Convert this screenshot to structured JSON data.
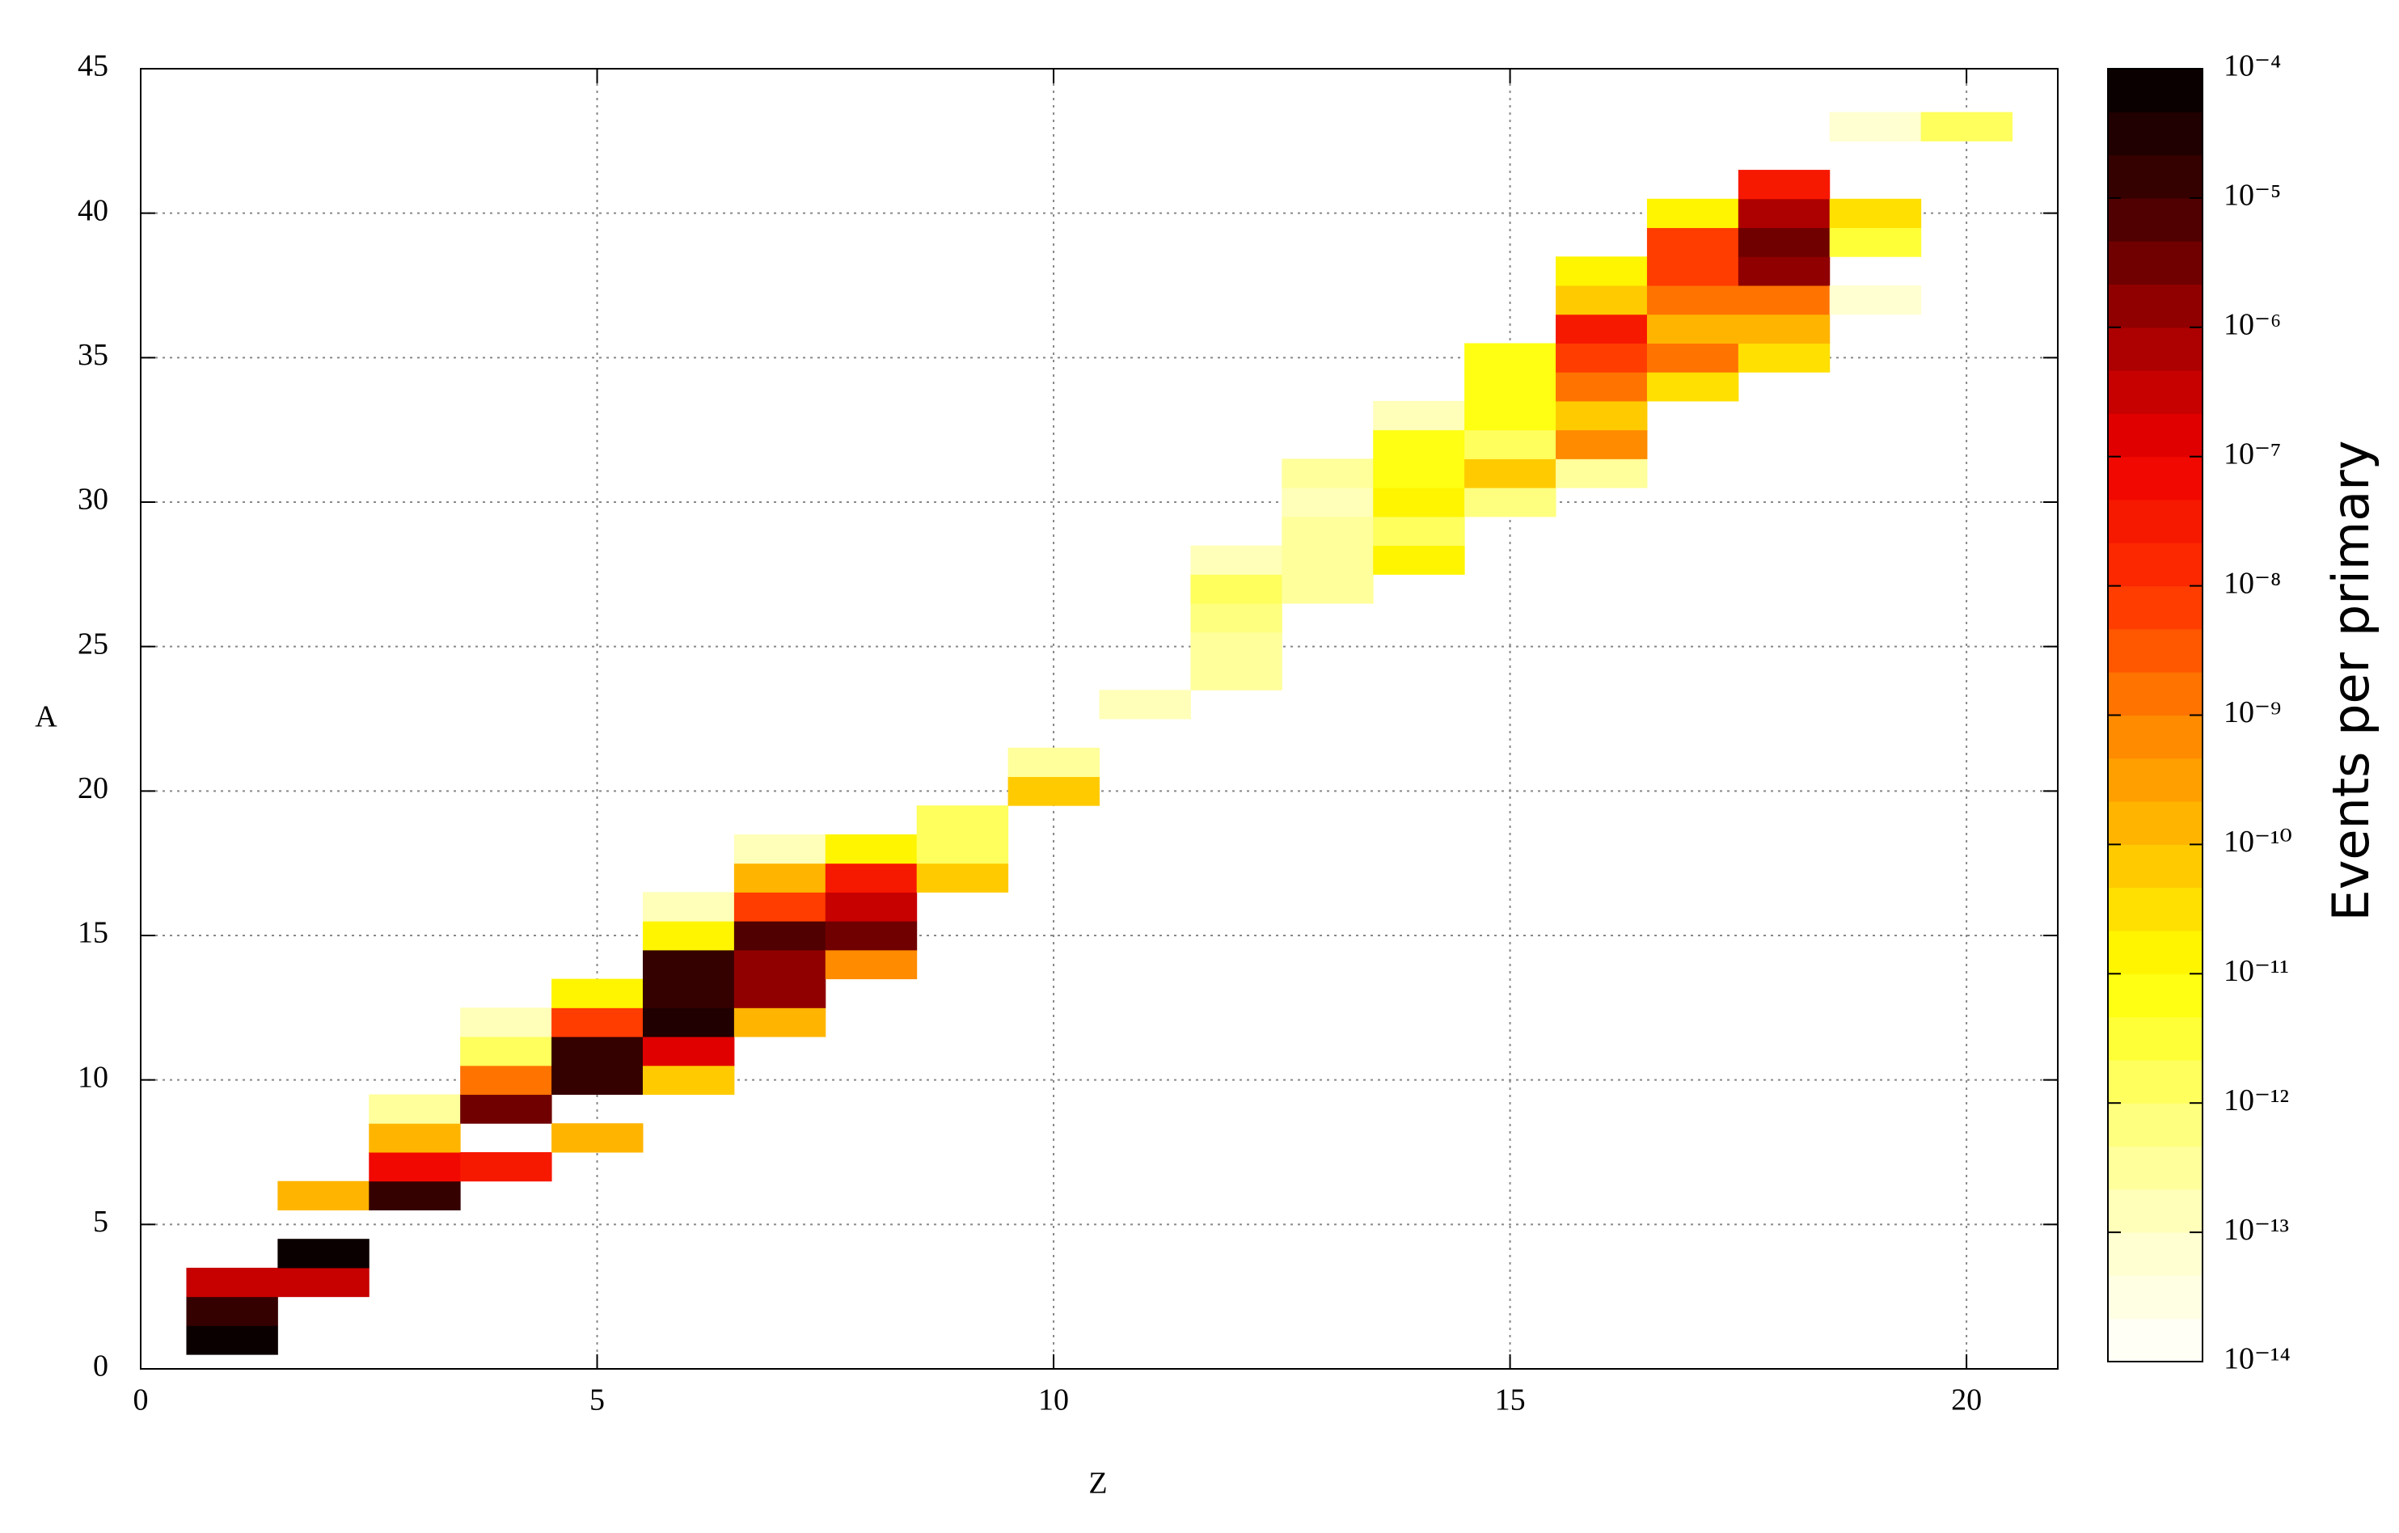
{
  "chart_data": {
    "type": "heatmap",
    "x_label": "Z",
    "y_label": "A",
    "colorbar_label": "Events per primary",
    "xlim": [
      0,
      21
    ],
    "ylim": [
      0,
      45
    ],
    "xticks": [
      0,
      5,
      10,
      15,
      20
    ],
    "yticks": [
      0,
      5,
      10,
      15,
      20,
      25,
      30,
      35,
      40,
      45
    ],
    "grid": true,
    "zlim": [
      1e-14,
      0.0001
    ],
    "zscale": "log",
    "zticks": [
      {
        "value": 1e-14,
        "label": "10⁻¹⁴"
      },
      {
        "value": 1e-13,
        "label": "10⁻¹³"
      },
      {
        "value": 1e-12,
        "label": "10⁻¹²"
      },
      {
        "value": 1e-11,
        "label": "10⁻¹¹"
      },
      {
        "value": 1e-10,
        "label": "10⁻¹⁰"
      },
      {
        "value": 1e-09,
        "label": "10⁻⁹"
      },
      {
        "value": 1e-08,
        "label": "10⁻⁸"
      },
      {
        "value": 1e-07,
        "label": "10⁻⁷"
      },
      {
        "value": 1e-06,
        "label": "10⁻⁶"
      },
      {
        "value": 1e-05,
        "label": "10⁻⁵"
      },
      {
        "value": 0.0001,
        "label": "10⁻⁴"
      }
    ],
    "levels": 30,
    "colormap": [
      "#ffffff",
      "#ffffc8",
      "#ffff70",
      "#ffff00",
      "#ffc000",
      "#ff8000",
      "#ff3000",
      "#ee0000",
      "#a00000",
      "#400000",
      "#000000"
    ],
    "x": [
      1,
      1,
      1,
      2,
      2,
      2,
      3,
      3,
      3,
      3,
      4,
      4,
      4,
      4,
      4,
      5,
      5,
      5,
      5,
      5,
      6,
      6,
      6,
      6,
      6,
      6,
      6,
      7,
      7,
      7,
      7,
      7,
      7,
      7,
      8,
      8,
      8,
      8,
      8,
      9,
      9,
      9,
      10,
      10,
      11,
      12,
      12,
      12,
      12,
      12,
      13,
      13,
      13,
      13,
      13,
      14,
      14,
      14,
      14,
      14,
      14,
      15,
      15,
      15,
      15,
      15,
      15,
      16,
      16,
      16,
      16,
      16,
      16,
      16,
      16,
      17,
      17,
      17,
      17,
      17,
      17,
      17,
      18,
      18,
      18,
      18,
      18,
      18,
      18,
      19,
      19,
      19,
      19,
      20
    ],
    "y": [
      1,
      2,
      3,
      3,
      4,
      6,
      6,
      7,
      8,
      9,
      7,
      9,
      10,
      11,
      12,
      8,
      10,
      11,
      12,
      13,
      10,
      11,
      12,
      13,
      14,
      15,
      16,
      12,
      13,
      14,
      15,
      16,
      17,
      18,
      14,
      15,
      16,
      17,
      18,
      17,
      18,
      19,
      20,
      21,
      23,
      24,
      25,
      26,
      27,
      28,
      27,
      28,
      29,
      30,
      31,
      28,
      29,
      30,
      31,
      32,
      33,
      30,
      31,
      32,
      33,
      34,
      35,
      31,
      32,
      33,
      34,
      35,
      36,
      37,
      38,
      34,
      35,
      36,
      37,
      38,
      39,
      40,
      35,
      36,
      37,
      38,
      39,
      40,
      41,
      37,
      39,
      40,
      43,
      43
    ],
    "values": [
      8e-05,
      1e-05,
      3e-07,
      3e-07,
      8e-05,
      1e-10,
      1e-05,
      5e-08,
      1e-10,
      3e-13,
      3e-08,
      3e-06,
      1e-09,
      1e-12,
      1e-13,
      1e-10,
      2e-05,
      1e-05,
      5e-09,
      1e-11,
      5e-11,
      1e-07,
      4e-05,
      1e-05,
      2e-05,
      1e-11,
      2e-13,
      1e-10,
      2e-06,
      2e-06,
      6e-06,
      5e-09,
      2e-10,
      2e-13,
      5e-10,
      2.5e-06,
      3e-07,
      3e-08,
      1e-11,
      5e-11,
      1.5e-12,
      1.5e-12,
      5e-11,
      3e-13,
      1e-13,
      2.5e-13,
      2.5e-13,
      6e-13,
      1e-12,
      2e-13,
      2.5e-13,
      2.5e-13,
      2.5e-13,
      1.5e-13,
      2.5e-13,
      1e-11,
      1e-12,
      1e-11,
      6e-12,
      6e-12,
      1e-13,
      5e-13,
      6e-11,
      2e-12,
      6e-12,
      6e-12,
      8e-12,
      3e-13,
      6e-10,
      6e-11,
      1.5e-09,
      8e-09,
      2.5e-08,
      6e-11,
      1e-11,
      2.5e-11,
      2e-09,
      1.5e-10,
      1.2e-09,
      6e-09,
      8e-09,
      1e-11,
      2.5e-11,
      1e-10,
      1e-09,
      1e-06,
      2.5e-06,
      6e-07,
      3e-08,
      6e-14,
      3e-12,
      2.5e-11,
      5e-14,
      1e-12
    ]
  }
}
